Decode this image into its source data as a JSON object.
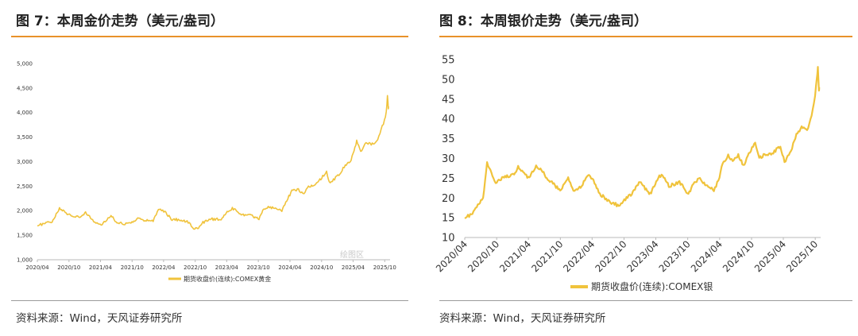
{
  "figures": [
    {
      "title": "图 7：本周金价走势（美元/盎司）",
      "source": "资料来源：Wind，天风证券研究所",
      "watermark": "绘图区"
    },
    {
      "title": "图 8：本周银价走势（美元/盎司）",
      "source": "资料来源：Wind，天风证券研究所"
    }
  ],
  "colors": {
    "accent_rule": "#e8922a",
    "series_line": "#f0c33c"
  },
  "chart_data": [
    {
      "type": "line",
      "title": "",
      "xlabel": "",
      "ylabel": "",
      "ylim": [
        1000,
        5000
      ],
      "yticks": [
        1000,
        1500,
        2000,
        2500,
        3000,
        3500,
        4000,
        4500,
        5000
      ],
      "ytick_labels": [
        "1,000",
        "1,500",
        "2,000",
        "2,500",
        "3,000",
        "3,500",
        "4,000",
        "4,500",
        "5,000"
      ],
      "xlim": [
        "2020-04-01",
        "2025-11-01"
      ],
      "xticks": [
        "2020-04-01",
        "2020-10-01",
        "2021-04-01",
        "2021-10-01",
        "2022-04-01",
        "2022-10-01",
        "2023-04-01",
        "2023-10-01",
        "2024-04-01",
        "2024-10-01",
        "2025-04-01",
        "2025-10-01"
      ],
      "xtick_labels": [
        "2020/04",
        "2020/10",
        "2021/04",
        "2021/10",
        "2022/04",
        "2022/10",
        "2023/04",
        "2023/10",
        "2024/04",
        "2024/10",
        "2025/04",
        "2025/10"
      ],
      "grid": false,
      "legend": "bottom-center",
      "series": [
        {
          "name": "期货收盘价(连续):COMEX黄金",
          "x": [
            "2020-04-01",
            "2020-05-15",
            "2020-07-01",
            "2020-08-07",
            "2020-09-15",
            "2020-11-01",
            "2020-12-15",
            "2021-01-05",
            "2021-02-15",
            "2021-03-31",
            "2021-05-15",
            "2021-06-01",
            "2021-06-30",
            "2021-08-09",
            "2021-09-30",
            "2021-11-15",
            "2021-12-15",
            "2022-01-31",
            "2022-03-08",
            "2022-04-15",
            "2022-05-15",
            "2022-07-01",
            "2022-08-15",
            "2022-09-28",
            "2022-10-20",
            "2022-11-15",
            "2023-01-01",
            "2023-02-28",
            "2023-04-15",
            "2023-05-04",
            "2023-06-30",
            "2023-08-15",
            "2023-10-05",
            "2023-10-27",
            "2023-12-04",
            "2024-01-15",
            "2024-02-14",
            "2024-03-08",
            "2024-04-12",
            "2024-05-20",
            "2024-06-15",
            "2024-07-17",
            "2024-08-15",
            "2024-09-15",
            "2024-10-30",
            "2024-11-14",
            "2024-12-15",
            "2025-01-15",
            "2025-02-15",
            "2025-03-15",
            "2025-04-01",
            "2025-04-22",
            "2025-05-15",
            "2025-06-15",
            "2025-07-15",
            "2025-08-15",
            "2025-09-10",
            "2025-09-30",
            "2025-10-10",
            "2025-10-17",
            "2025-10-22",
            "2025-10-24"
          ],
          "values": [
            1700,
            1740,
            1790,
            2060,
            1950,
            1890,
            1880,
            1950,
            1810,
            1700,
            1840,
            1900,
            1770,
            1730,
            1760,
            1860,
            1800,
            1800,
            2050,
            1960,
            1830,
            1810,
            1780,
            1630,
            1640,
            1760,
            1830,
            1820,
            2010,
            2050,
            1920,
            1910,
            1820,
            2000,
            2080,
            2030,
            1990,
            2180,
            2400,
            2440,
            2330,
            2480,
            2510,
            2600,
            2800,
            2570,
            2650,
            2750,
            2930,
            3000,
            3150,
            3430,
            3200,
            3400,
            3350,
            3400,
            3650,
            3850,
            4000,
            4350,
            4100,
            4130
          ]
        }
      ]
    },
    {
      "type": "line",
      "title": "",
      "xlabel": "",
      "ylabel": "",
      "ylim": [
        10,
        55
      ],
      "yticks": [
        10,
        15,
        20,
        25,
        30,
        35,
        40,
        45,
        50,
        55
      ],
      "ytick_labels": [
        "10",
        "15",
        "20",
        "25",
        "30",
        "35",
        "40",
        "45",
        "50",
        "55"
      ],
      "xlim": [
        "2020-04-01",
        "2025-11-01"
      ],
      "xticks": [
        "2020-04-01",
        "2020-10-01",
        "2021-04-01",
        "2021-10-01",
        "2022-04-01",
        "2022-10-01",
        "2023-04-01",
        "2023-10-01",
        "2024-04-01",
        "2024-10-01",
        "2025-04-01",
        "2025-10-01"
      ],
      "xtick_labels": [
        "2020/04",
        "2020/10",
        "2021/04",
        "2021/10",
        "2022/04",
        "2022/10",
        "2023/04",
        "2023/10",
        "2024/04",
        "2024/10",
        "2025/04",
        "2025/10"
      ],
      "grid": false,
      "legend": "bottom-center",
      "series": [
        {
          "name": "期货收盘价(连续):COMEX银",
          "x": [
            "2020-04-01",
            "2020-05-15",
            "2020-06-15",
            "2020-07-15",
            "2020-08-07",
            "2020-09-25",
            "2020-11-01",
            "2021-01-15",
            "2021-02-01",
            "2021-03-31",
            "2021-05-15",
            "2021-06-15",
            "2021-07-15",
            "2021-09-30",
            "2021-11-15",
            "2021-12-15",
            "2022-01-31",
            "2022-03-08",
            "2022-04-15",
            "2022-05-15",
            "2022-07-15",
            "2022-09-01",
            "2022-10-15",
            "2022-11-15",
            "2022-12-31",
            "2023-02-28",
            "2023-04-15",
            "2023-05-04",
            "2023-06-15",
            "2023-08-15",
            "2023-10-05",
            "2023-10-27",
            "2023-12-04",
            "2024-01-15",
            "2024-02-28",
            "2024-03-31",
            "2024-04-12",
            "2024-05-20",
            "2024-06-15",
            "2024-07-17",
            "2024-08-15",
            "2024-09-15",
            "2024-10-22",
            "2024-11-14",
            "2024-12-15",
            "2025-01-15",
            "2025-02-15",
            "2025-03-15",
            "2025-04-08",
            "2025-05-15",
            "2025-06-15",
            "2025-07-15",
            "2025-08-15",
            "2025-09-10",
            "2025-09-30",
            "2025-10-10",
            "2025-10-16",
            "2025-10-22",
            "2025-10-24"
          ],
          "values": [
            15,
            16,
            18,
            20,
            29,
            24,
            25,
            26,
            28,
            25,
            28,
            27,
            25,
            22,
            25,
            22,
            23,
            26,
            24,
            21,
            19,
            18,
            20,
            21,
            24,
            21,
            25,
            26,
            23,
            24,
            21,
            23,
            25,
            23,
            22,
            25,
            28,
            31,
            29,
            31,
            28,
            31,
            34,
            30,
            31,
            31,
            32,
            33,
            29,
            32,
            36,
            38,
            37,
            41,
            46,
            50,
            53,
            47,
            48
          ]
        }
      ]
    }
  ]
}
